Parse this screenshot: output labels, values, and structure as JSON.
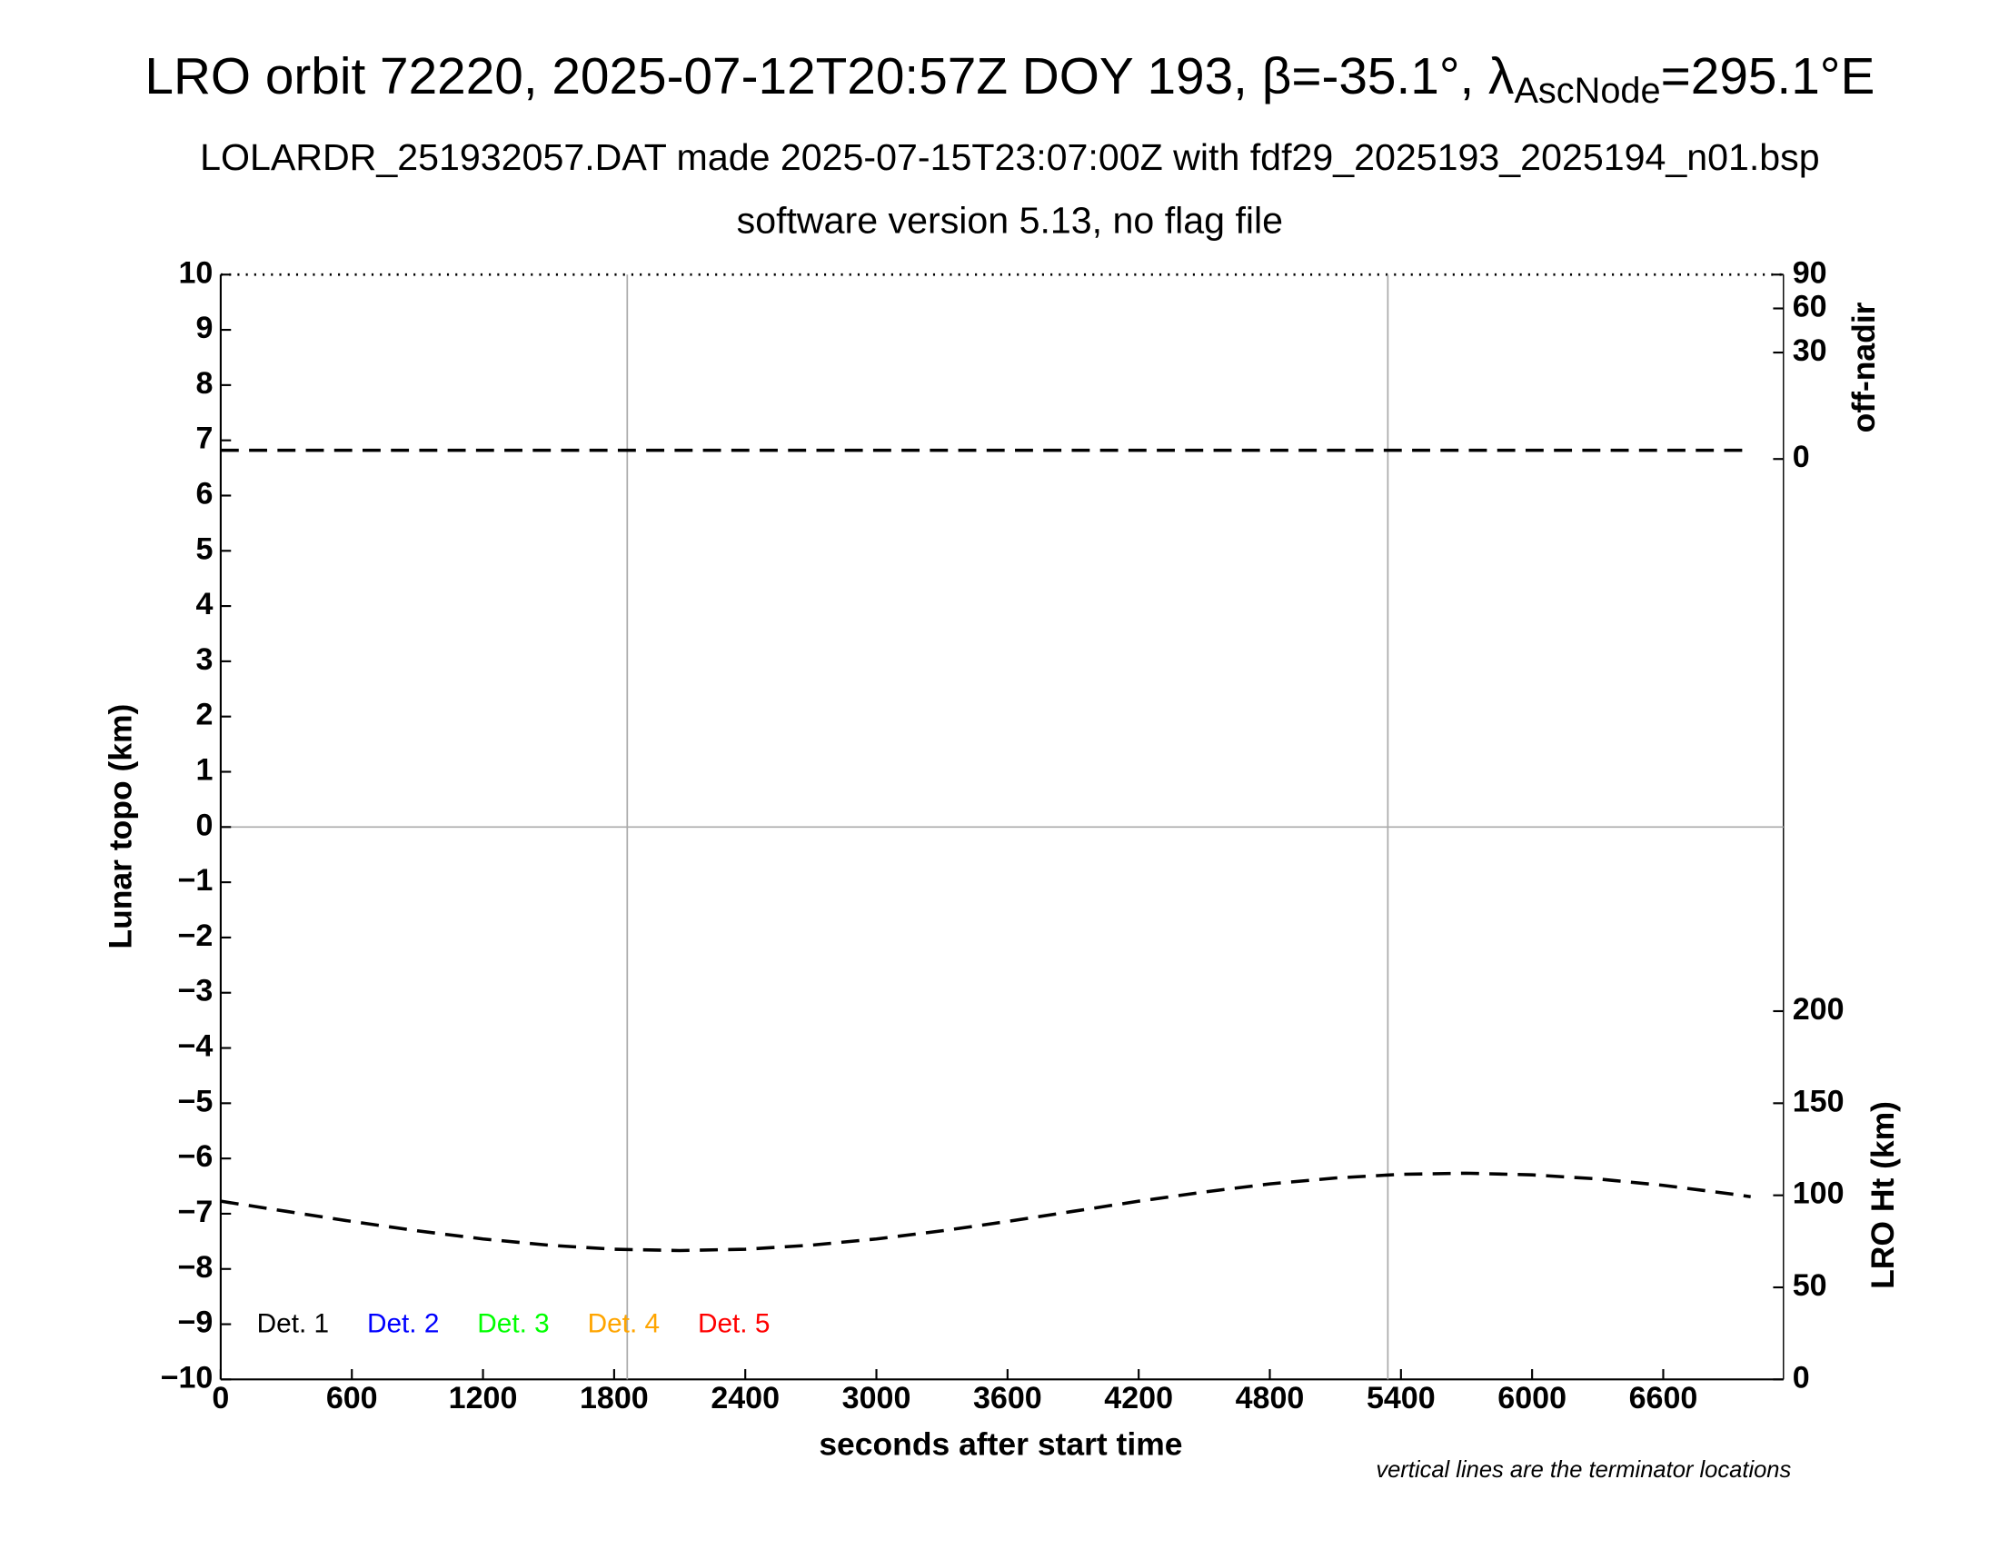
{
  "chart_data": {
    "type": "line",
    "title": [
      "LRO orbit 72220, 2025-07-12T20:57Z DOY 193, β=-35.1°, λ",
      "AscNode",
      "=295.1°E"
    ],
    "subtitle": [
      "LOLARDR_251932057.DAT made 2025-07-15T23:07:00Z with fdf29_2025193_2025194_n01.bsp",
      "software version 5.13, no flag file"
    ],
    "xlabel": "seconds after start time",
    "ylabel": "Lunar topo (km)",
    "y2label": "LRO Ht (km)",
    "y3label": "off-nadir",
    "footnote": "vertical lines are the terminator locations",
    "xlim": [
      0,
      7150
    ],
    "xticks": [
      0,
      600,
      1200,
      1800,
      2400,
      3000,
      3600,
      4200,
      4800,
      5400,
      6000,
      6600
    ],
    "ylim": [
      -10,
      10
    ],
    "yticks": [
      {
        "value": -10,
        "label": "−10"
      },
      {
        "value": -9,
        "label": "−9"
      },
      {
        "value": -8,
        "label": "−8"
      },
      {
        "value": -7,
        "label": "−7"
      },
      {
        "value": -6,
        "label": "−6"
      },
      {
        "value": -5,
        "label": "−5"
      },
      {
        "value": -4,
        "label": "−4"
      },
      {
        "value": -3,
        "label": "−3"
      },
      {
        "value": -2,
        "label": "−2"
      },
      {
        "value": -1,
        "label": "−1"
      },
      0,
      1,
      2,
      3,
      4,
      5,
      6,
      7,
      8,
      9,
      10
    ],
    "y2lim": [
      0,
      600
    ],
    "y2ticks": [
      0,
      50,
      100,
      150,
      200
    ],
    "y3lim": [
      0,
      90
    ],
    "y3scale": "sqrt",
    "y3ticks": [
      0,
      30,
      60,
      90
    ],
    "terminators": [
      1860,
      5340
    ],
    "zero_line": true,
    "legend": [
      {
        "name": "Det. 1",
        "color": "#000000"
      },
      {
        "name": "Det. 2",
        "color": "#0000ff"
      },
      {
        "name": "Det. 3",
        "color": "#00ff00"
      },
      {
        "name": "Det. 4",
        "color": "#ffa500"
      },
      {
        "name": "Det. 5",
        "color": "#ff0000"
      }
    ],
    "series": [
      {
        "axis": "y3",
        "color": "#000000",
        "x": [
          0,
          7000
        ],
        "values": [
          0.2,
          0.2
        ]
      },
      {
        "axis": "y2",
        "color": "#000000",
        "x": [
          0,
          300,
          600,
          900,
          1200,
          1500,
          1800,
          2100,
          2400,
          2700,
          3000,
          3300,
          3600,
          3900,
          4200,
          4500,
          4800,
          5100,
          5400,
          5700,
          6000,
          6300,
          6600,
          6900,
          7000
        ],
        "values": [
          96.8,
          91.3,
          85.8,
          80.7,
          76.3,
          72.9,
          70.7,
          70.0,
          70.7,
          72.9,
          76.3,
          80.7,
          85.8,
          91.3,
          96.8,
          101.8,
          106.2,
          109.4,
          111.4,
          112.0,
          111.1,
          108.9,
          105.4,
          100.9,
          99.2
        ]
      }
    ]
  }
}
